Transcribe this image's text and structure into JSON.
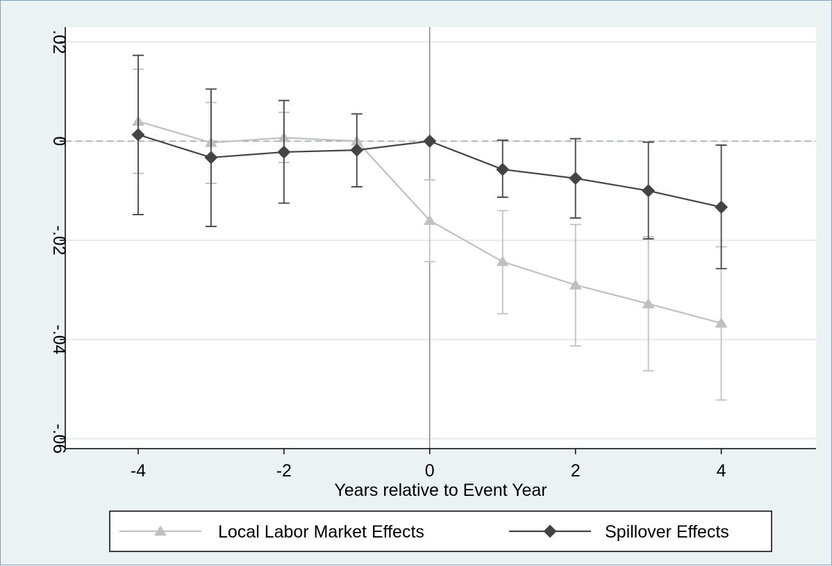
{
  "chart_data": {
    "type": "line",
    "title": "",
    "xlabel": "Years relative to Event Year",
    "ylabel": "",
    "xlim": [
      -5,
      5.3
    ],
    "ylim": [
      -0.062,
      0.023
    ],
    "xticks": [
      -4,
      -2,
      0,
      2,
      4
    ],
    "xtick_labels": [
      "-4",
      "-2",
      "0",
      "2",
      "4"
    ],
    "yticks": [
      0.02,
      0,
      -0.02,
      -0.04,
      -0.06
    ],
    "ytick_labels": [
      ".02",
      "0",
      "-.02",
      "-.04",
      "-.06"
    ],
    "grid": "horizontal",
    "reference_lines": {
      "horizontal_dashed_at_y": 0,
      "vertical_at_x": 0
    },
    "legend_position": "bottom",
    "x": [
      -4,
      -3,
      -2,
      -1,
      0,
      1,
      2,
      3,
      4
    ],
    "series": [
      {
        "name": "Local Labor Market Effects",
        "marker": "triangle",
        "color": "#c0c0c0",
        "values": [
          0.004,
          -0.0003,
          0.0007,
          0.0,
          -0.016,
          -0.0243,
          -0.029,
          -0.0328,
          -0.0367
        ],
        "ci_upper": [
          0.0145,
          0.0078,
          0.0058,
          0.0,
          -0.0078,
          -0.014,
          -0.0168,
          -0.0193,
          -0.0213
        ],
        "ci_lower": [
          -0.0065,
          -0.0085,
          -0.0043,
          0.0,
          -0.0243,
          -0.0348,
          -0.0413,
          -0.0463,
          -0.0522
        ]
      },
      {
        "name": "Spillover Effects",
        "marker": "diamond",
        "color": "#444444",
        "values": [
          0.0013,
          -0.0033,
          -0.0022,
          -0.0018,
          0.0,
          -0.0057,
          -0.0075,
          -0.01,
          -0.0133
        ],
        "ci_upper": [
          0.0173,
          0.0105,
          0.0082,
          0.0055,
          0.0,
          0.0002,
          0.0005,
          -0.0002,
          -0.0008
        ],
        "ci_lower": [
          -0.0148,
          -0.0172,
          -0.0125,
          -0.0092,
          0.0,
          -0.0113,
          -0.0155,
          -0.0197,
          -0.0257
        ]
      }
    ]
  }
}
